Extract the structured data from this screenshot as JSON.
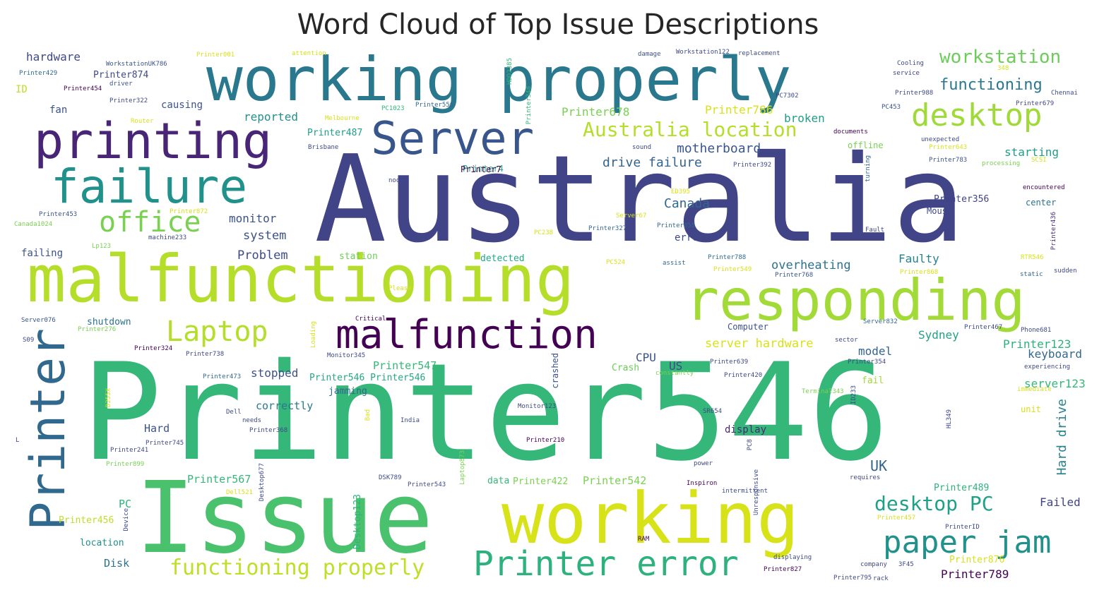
{
  "title": "Word Cloud of Top Issue Descriptions",
  "palette": {
    "dark_purple": "#440154",
    "indigo": "#414487",
    "blue": "#2a788e",
    "teal": "#21918c",
    "green": "#22a884",
    "lime": "#7ad151",
    "yellow_green": "#bddf26",
    "yellow": "#fde725"
  },
  "words": [
    {
      "text": "Printer546",
      "color": "#35b779"
    },
    {
      "text": "Australia",
      "color": "#414487"
    },
    {
      "text": "working properly",
      "color": "#2a788e"
    },
    {
      "text": "malfunctioning",
      "color": "#b5de2b"
    },
    {
      "text": "responding",
      "color": "#a2da37"
    },
    {
      "text": "Issue",
      "color": "#4ac16d"
    },
    {
      "text": "working",
      "color": "#d8e219"
    },
    {
      "text": "printing",
      "color": "#482576"
    },
    {
      "text": "failure",
      "color": "#21918c"
    },
    {
      "text": "Server",
      "color": "#39568c"
    },
    {
      "text": "Printer",
      "color": "#31688e"
    },
    {
      "text": "malfunction",
      "color": "#440154"
    },
    {
      "text": "office",
      "color": "#7ad151"
    },
    {
      "text": "Laptop",
      "color": "#b5de2b"
    },
    {
      "text": "desktop",
      "color": "#a0da39"
    },
    {
      "text": "Printer error",
      "color": "#2db27d"
    },
    {
      "text": "paper jam",
      "color": "#21918c"
    },
    {
      "text": "Australia location",
      "color": "#b5de2b"
    },
    {
      "text": "workstation",
      "color": "#6ccd5a"
    },
    {
      "text": "functioning properly",
      "color": "#bddf26"
    },
    {
      "text": "desktop PC",
      "color": "#1fa187"
    },
    {
      "text": "functioning",
      "color": "#2a788e"
    },
    {
      "text": "motherboard",
      "color": "#39568c"
    },
    {
      "text": "drive failure",
      "color": "#33638d"
    },
    {
      "text": "Canada",
      "color": "#31688e"
    },
    {
      "text": "Printer678",
      "color": "#7ad151"
    },
    {
      "text": "Printer786",
      "color": "#d8e219"
    },
    {
      "text": "broken",
      "color": "#1f9e89"
    },
    {
      "text": "reported",
      "color": "#21918c"
    },
    {
      "text": "Printer487",
      "color": "#1f9e89"
    },
    {
      "text": "hardware",
      "color": "#3e4989"
    },
    {
      "text": "Printer874",
      "color": "#3e4989"
    },
    {
      "text": "monitor",
      "color": "#3b528b"
    },
    {
      "text": "system",
      "color": "#3b528b"
    },
    {
      "text": "Problem",
      "color": "#3e4989"
    },
    {
      "text": "overheating",
      "color": "#2c728e"
    },
    {
      "text": "Faulty",
      "color": "#26828e"
    },
    {
      "text": "starting",
      "color": "#1f9e89"
    },
    {
      "text": "Printer356",
      "color": "#414487"
    },
    {
      "text": "server hardware",
      "color": "#d8e219"
    },
    {
      "text": "Sydney",
      "color": "#20a386"
    },
    {
      "text": "model",
      "color": "#33638d"
    },
    {
      "text": "Printer123",
      "color": "#2db27d"
    },
    {
      "text": "keyboard",
      "color": "#31688e"
    },
    {
      "text": "server123",
      "color": "#35b779"
    },
    {
      "text": "Hard drive",
      "color": "#26828e"
    },
    {
      "text": "Printer547",
      "color": "#35b779"
    },
    {
      "text": "CPU",
      "color": "#3b528b"
    },
    {
      "text": "US",
      "color": "#3e4989"
    },
    {
      "text": "stopped",
      "color": "#3b528b"
    },
    {
      "text": "correctly",
      "color": "#2a788e"
    },
    {
      "text": "Hard",
      "color": "#3b528b"
    },
    {
      "text": "display",
      "color": "#482878"
    },
    {
      "text": "UK",
      "color": "#33638d"
    },
    {
      "text": "Printer567",
      "color": "#35b779"
    },
    {
      "text": "Printer542",
      "color": "#7ad151"
    },
    {
      "text": "Printer489",
      "color": "#2db27d"
    },
    {
      "text": "Failed",
      "color": "#414487"
    },
    {
      "text": "Printer789",
      "color": "#440154"
    },
    {
      "text": "Printer456",
      "color": "#bddf26"
    },
    {
      "text": "PC",
      "color": "#2db27d"
    },
    {
      "text": "location",
      "color": "#21918c"
    },
    {
      "text": "Disk",
      "color": "#2c728e"
    },
    {
      "text": "fan",
      "color": "#3b528b"
    },
    {
      "text": "causing",
      "color": "#3b528b"
    },
    {
      "text": "ID",
      "color": "#bddf26"
    },
    {
      "text": "failing",
      "color": "#3b528b"
    },
    {
      "text": "shutdown",
      "color": "#2c728e"
    },
    {
      "text": "Printer4",
      "color": "#22a884"
    },
    {
      "text": "Printer546 Printer546",
      "color": "#22a884"
    },
    {
      "text": "jamming",
      "color": "#31688e"
    },
    {
      "text": "Printer422",
      "color": "#7ad151"
    },
    {
      "text": "data",
      "color": "#35b779"
    },
    {
      "text": "detected",
      "color": "#22a884"
    },
    {
      "text": "station",
      "color": "#6ece58"
    },
    {
      "text": "error",
      "color": "#3e4989"
    },
    {
      "text": "Computer",
      "color": "#3b528b"
    },
    {
      "text": "Mouse",
      "color": "#3e4989"
    },
    {
      "text": "center",
      "color": "#2c728e"
    },
    {
      "text": "offline",
      "color": "#7ad151"
    },
    {
      "text": "fail",
      "color": "#a0da39"
    },
    {
      "text": "Crash",
      "color": "#6ccd5a"
    },
    {
      "text": "crashed",
      "color": "#3b528b"
    },
    {
      "text": "Desktop123",
      "color": "#2db27d"
    },
    {
      "text": "WorkstationUK786",
      "color": "#3b528b"
    },
    {
      "text": "Printer429",
      "color": "#31688e"
    },
    {
      "text": "Printer454",
      "color": "#440154"
    },
    {
      "text": "driver",
      "color": "#3b528b"
    },
    {
      "text": "Printer322",
      "color": "#3e4989"
    },
    {
      "text": "Router",
      "color": "#d8e219"
    },
    {
      "text": "Printer001",
      "color": "#d8e219"
    },
    {
      "text": "attention",
      "color": "#d8e219"
    },
    {
      "text": "damage",
      "color": "#3b528b"
    },
    {
      "text": "Workstation122",
      "color": "#3e4989"
    },
    {
      "text": "replacement",
      "color": "#3e4989"
    },
    {
      "text": "HDD2385",
      "color": "#35b779"
    },
    {
      "text": "Printer348",
      "color": "#35b779"
    },
    {
      "text": "Melbourne",
      "color": "#d8e219"
    },
    {
      "text": "PC1023",
      "color": "#35b779"
    },
    {
      "text": "Printer556",
      "color": "#31688e"
    },
    {
      "text": "PC7302",
      "color": "#3e4989"
    },
    {
      "text": "Cooling",
      "color": "#3e4989"
    },
    {
      "text": "service",
      "color": "#414487"
    },
    {
      "text": "348",
      "color": "#d8e219"
    },
    {
      "text": "Printer988",
      "color": "#3e4989"
    },
    {
      "text": "Chennai",
      "color": "#3e4989"
    },
    {
      "text": "PC453",
      "color": "#3b528b"
    },
    {
      "text": "Printer679",
      "color": "#414487"
    },
    {
      "text": "documents",
      "color": "#440154"
    },
    {
      "text": "unexpected",
      "color": "#3e4989"
    },
    {
      "text": "Printer643",
      "color": "#d8e219"
    },
    {
      "text": "Brisbane",
      "color": "#3e4989"
    },
    {
      "text": "sound",
      "color": "#3e4989"
    },
    {
      "text": "Printer392",
      "color": "#3e4989"
    },
    {
      "text": "Printer783",
      "color": "#3b528b"
    },
    {
      "text": "processing",
      "color": "#7ad151"
    },
    {
      "text": "SCSI",
      "color": "#d8e219"
    },
    {
      "text": "turning",
      "color": "#31688e"
    },
    {
      "text": "node",
      "color": "#3e4989"
    },
    {
      "text": "Printer7",
      "color": "#440154"
    },
    {
      "text": "encountered",
      "color": "#440154"
    },
    {
      "text": "ED395",
      "color": "#d8e219"
    },
    {
      "text": "Printer453",
      "color": "#3b528b"
    },
    {
      "text": "Printer872",
      "color": "#d8e219"
    },
    {
      "text": "Canada1024",
      "color": "#7ad151"
    },
    {
      "text": "machine233",
      "color": "#3e4989"
    },
    {
      "text": "Lp123",
      "color": "#7ad151"
    },
    {
      "text": "PC238",
      "color": "#d8e219"
    },
    {
      "text": "Server67",
      "color": "#d8e219"
    },
    {
      "text": "Printer327",
      "color": "#31688e"
    },
    {
      "text": "Printer855",
      "color": "#31688e"
    },
    {
      "text": "Fault",
      "color": "#3e4989"
    },
    {
      "text": "Printer436",
      "color": "#482878"
    },
    {
      "text": "PC524",
      "color": "#d8e219"
    },
    {
      "text": "assist",
      "color": "#31688e"
    },
    {
      "text": "Printer788",
      "color": "#31688e"
    },
    {
      "text": "Printer549",
      "color": "#d8e219"
    },
    {
      "text": "Printer768",
      "color": "#3b528b"
    },
    {
      "text": "Printer868",
      "color": "#d8e219"
    },
    {
      "text": "RTR546",
      "color": "#d8e219"
    },
    {
      "text": "static",
      "color": "#31688e"
    },
    {
      "text": "sudden",
      "color": "#3e4989"
    },
    {
      "text": "Please",
      "color": "#d8e219"
    },
    {
      "text": "Critical",
      "color": "#440154"
    },
    {
      "text": "Server076",
      "color": "#3b528b"
    },
    {
      "text": "Printer276",
      "color": "#7ad151"
    },
    {
      "text": "S09",
      "color": "#3e4989"
    },
    {
      "text": "Loading",
      "color": "#d8e219"
    },
    {
      "text": "Printer324",
      "color": "#440154"
    },
    {
      "text": "Printer738",
      "color": "#3e4989"
    },
    {
      "text": "Monitor345",
      "color": "#3e4989"
    },
    {
      "text": "Server832",
      "color": "#31688e"
    },
    {
      "text": "sector",
      "color": "#3e4989"
    },
    {
      "text": "Printer467",
      "color": "#3e4989"
    },
    {
      "text": "Phone681",
      "color": "#3e4989"
    },
    {
      "text": "Printer639",
      "color": "#3e4989"
    },
    {
      "text": "Printer354",
      "color": "#3e4989"
    },
    {
      "text": "experiencing",
      "color": "#3e4989"
    },
    {
      "text": "Printer473",
      "color": "#31688e"
    },
    {
      "text": "constantly",
      "color": "#7ad151"
    },
    {
      "text": "Printer420",
      "color": "#3e4989"
    },
    {
      "text": "D255X",
      "color": "#d8e219"
    },
    {
      "text": "Terminal343",
      "color": "#7ad151"
    },
    {
      "text": "ID233",
      "color": "#3e4989"
    },
    {
      "text": "immediate",
      "color": "#d8e219"
    },
    {
      "text": "unit",
      "color": "#d8e219"
    },
    {
      "text": "Dell",
      "color": "#3e4989"
    },
    {
      "text": "Bad",
      "color": "#d8e219"
    },
    {
      "text": "Monitor123",
      "color": "#3e4989"
    },
    {
      "text": "SR654",
      "color": "#3e4989"
    },
    {
      "text": "HL349",
      "color": "#3e4989"
    },
    {
      "text": "needs",
      "color": "#3e4989"
    },
    {
      "text": "India",
      "color": "#3e4989"
    },
    {
      "text": "Printer368",
      "color": "#3e4989"
    },
    {
      "text": "Printer745",
      "color": "#3e4989"
    },
    {
      "text": "Printer241",
      "color": "#3e4989"
    },
    {
      "text": "Printer210",
      "color": "#440154"
    },
    {
      "text": "PC8",
      "color": "#3e4989"
    },
    {
      "text": "Printer899",
      "color": "#7ad151"
    },
    {
      "text": "Laptop873",
      "color": "#7ad151"
    },
    {
      "text": "Desktop677",
      "color": "#3e4989"
    },
    {
      "text": "power",
      "color": "#3e4989"
    },
    {
      "text": "Unresponsive",
      "color": "#3e4989"
    },
    {
      "text": "DSK789",
      "color": "#3e4989"
    },
    {
      "text": "Printer543",
      "color": "#3e4989"
    },
    {
      "text": "Inspiron",
      "color": "#440154"
    },
    {
      "text": "intermittent",
      "color": "#3e4989"
    },
    {
      "text": "requires",
      "color": "#3e4989"
    },
    {
      "text": "Dell521",
      "color": "#d8e219"
    },
    {
      "text": "Device",
      "color": "#3e4989"
    },
    {
      "text": "Printer457",
      "color": "#d8e219"
    },
    {
      "text": "PrinterID",
      "color": "#3e4989"
    },
    {
      "text": "RAM",
      "color": "#440154"
    },
    {
      "text": "displaying",
      "color": "#3e4989"
    },
    {
      "text": "company",
      "color": "#3e4989"
    },
    {
      "text": "3F45",
      "color": "#3e4989"
    },
    {
      "text": "Printer876",
      "color": "#d8e219"
    },
    {
      "text": "Printer827",
      "color": "#440154"
    },
    {
      "text": "Printer795",
      "color": "#3e4989"
    },
    {
      "text": "rack",
      "color": "#3e4989"
    },
    {
      "text": "L",
      "color": "#3e4989"
    }
  ]
}
